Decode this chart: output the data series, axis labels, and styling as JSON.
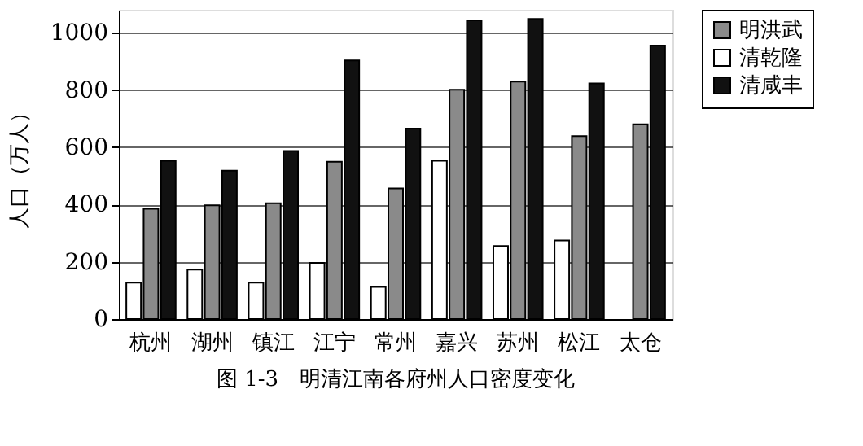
{
  "chart_data": {
    "type": "bar",
    "title": "图 1-3　明清江南各府州人口密度变化",
    "ylabel": "人口（万人）",
    "categories": [
      "杭州",
      "湖州",
      "镇江",
      "江宁",
      "常州",
      "嘉兴",
      "苏州",
      "松江",
      "太仓"
    ],
    "series": [
      {
        "name": "明洪武",
        "color": "#8a8a8a",
        "values": [
          385,
          397,
          404,
          549,
          456,
          801,
          829,
          639,
          680
        ]
      },
      {
        "name": "清乾隆",
        "color": "#ffffff",
        "values": [
          127,
          173,
          127,
          196,
          112,
          553,
          255,
          274,
          null
        ]
      },
      {
        "name": "清咸丰",
        "color": "#111111",
        "values": [
          553,
          518,
          587,
          903,
          665,
          1043,
          1048,
          823,
          955
        ]
      }
    ],
    "ylim": [
      0,
      1080
    ],
    "yticks": [
      0,
      200,
      400,
      600,
      800,
      1000
    ],
    "grid": "y",
    "legend": "right"
  }
}
